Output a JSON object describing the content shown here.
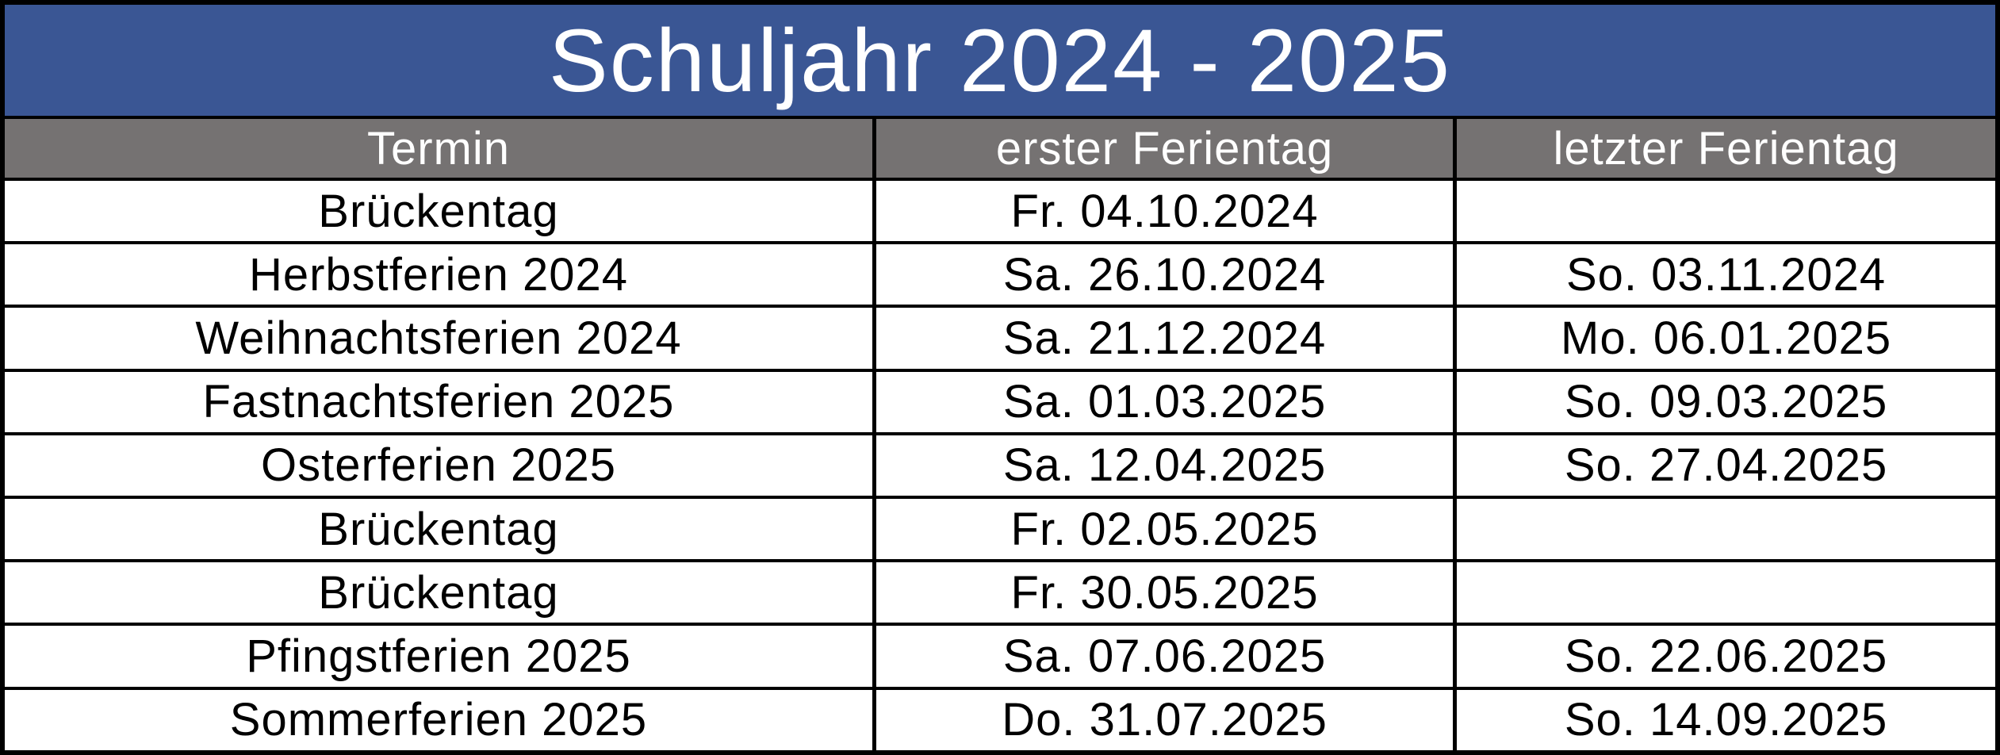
{
  "title": "Schuljahr 2024 - 2025",
  "colors": {
    "title_bg": "#3A5694",
    "header_bg": "#757272",
    "border": "#000000",
    "title_text": "#FFFFFF",
    "body_text": "#000000"
  },
  "table": {
    "headers": [
      "Termin",
      "erster Ferientag",
      "letzter Ferientag"
    ],
    "rows": [
      {
        "termin": "Brückentag",
        "first": "Fr. 04.10.2024",
        "last": ""
      },
      {
        "termin": "Herbstferien 2024",
        "first": "Sa. 26.10.2024",
        "last": "So. 03.11.2024"
      },
      {
        "termin": "Weihnachtsferien 2024",
        "first": "Sa. 21.12.2024",
        "last": "Mo. 06.01.2025"
      },
      {
        "termin": "Fastnachtsferien 2025",
        "first": "Sa. 01.03.2025",
        "last": "So. 09.03.2025"
      },
      {
        "termin": "Osterferien 2025",
        "first": "Sa. 12.04.2025",
        "last": "So. 27.04.2025"
      },
      {
        "termin": "Brückentag",
        "first": "Fr. 02.05.2025",
        "last": ""
      },
      {
        "termin": "Brückentag",
        "first": "Fr. 30.05.2025",
        "last": ""
      },
      {
        "termin": "Pfingstferien 2025",
        "first": "Sa. 07.06.2025",
        "last": "So. 22.06.2025"
      },
      {
        "termin": "Sommerferien 2025",
        "first": "Do. 31.07.2025",
        "last": "So. 14.09.2025"
      }
    ]
  }
}
